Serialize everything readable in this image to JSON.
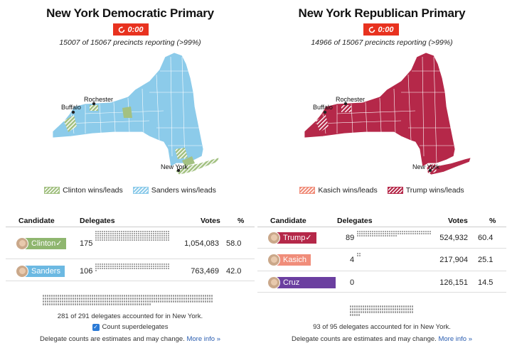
{
  "dem": {
    "title": "New York Democratic Primary",
    "timer": "0:00",
    "reporting": "15007 of 15067 precincts reporting (>99%)",
    "cities": {
      "rochester": "Rochester",
      "buffalo": "Buffalo",
      "new_york": "New York"
    },
    "legend": [
      "Clinton wins/leads",
      "Sanders wins/leads"
    ],
    "headers": {
      "candidate": "Candidate",
      "delegates": "Delegates",
      "votes": "Votes",
      "pct": "%"
    },
    "candidates": [
      {
        "name": "Clinton✓",
        "delegates": "175",
        "votes": "1,054,083",
        "pct": "58.0",
        "color": "#8fb66f"
      },
      {
        "name": "Sanders",
        "delegates": "106",
        "votes": "763,469",
        "pct": "42.0",
        "color": "#6cb9e2"
      }
    ],
    "accounted": "281 of 291 delegates accounted for in New York.",
    "checkbox_label": "Count superdelegates",
    "footnote": "Delegate counts are estimates and may change.",
    "more_info": "More info »"
  },
  "rep": {
    "title": "New York Republican Primary",
    "timer": "0:00",
    "reporting": "14966 of 15067 precincts reporting (>99%)",
    "cities": {
      "rochester": "Rochester",
      "buffalo": "Buffalo",
      "new_york": "New York"
    },
    "legend": [
      "Kasich wins/leads",
      "Trump wins/leads"
    ],
    "headers": {
      "candidate": "Candidate",
      "delegates": "Delegates",
      "votes": "Votes",
      "pct": "%"
    },
    "candidates": [
      {
        "name": "Trump✓",
        "delegates": "89",
        "votes": "524,932",
        "pct": "60.4",
        "color": "#b52849"
      },
      {
        "name": "Kasich",
        "delegates": "4",
        "votes": "217,904",
        "pct": "25.1",
        "color": "#f08d7a"
      },
      {
        "name": "Cruz",
        "delegates": "0",
        "votes": "126,151",
        "pct": "14.5",
        "color": "#6b3fa0"
      }
    ],
    "accounted": "93 of 95 delegates accounted for in New York.",
    "footnote": "Delegate counts are estimates and may change.",
    "more_info": "More info »"
  },
  "colors": {
    "timer": "#e8321f",
    "sanders_blue": "#8ccbea",
    "clinton_green": "#a3c182",
    "trump_red": "#b52849",
    "kasich_salmon": "#f08d7a",
    "link": "#2a5db0"
  }
}
